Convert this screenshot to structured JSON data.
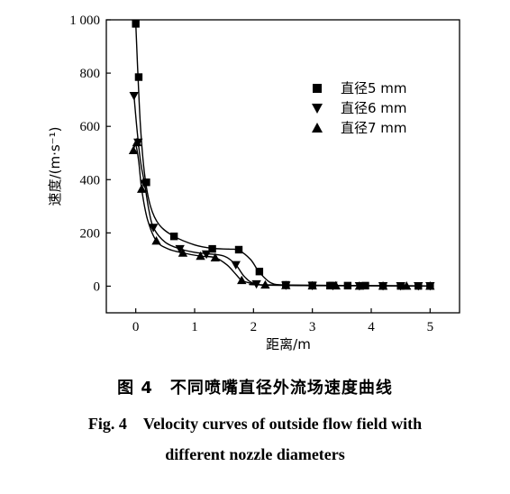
{
  "chart_data": {
    "type": "line",
    "xlabel": "距离/m",
    "ylabel": "速度/(m·s⁻¹)",
    "xlim": [
      -0.5,
      5.5
    ],
    "ylim": [
      -100,
      1000
    ],
    "x_ticks": [
      0,
      1,
      2,
      3,
      4,
      5
    ],
    "y_ticks": [
      0,
      200,
      400,
      600,
      800,
      1000
    ],
    "y_tick_labels": [
      "0",
      "200",
      "400",
      "600",
      "800",
      "1 000"
    ],
    "grid": false,
    "legend_position": "upper-right",
    "series": [
      {
        "name": "直径5 mm",
        "marker": "square",
        "points": [
          [
            0.0,
            985
          ],
          [
            0.05,
            785
          ],
          [
            0.18,
            390
          ],
          [
            0.65,
            187
          ],
          [
            1.3,
            140
          ],
          [
            1.75,
            137
          ],
          [
            2.1,
            55
          ],
          [
            2.55,
            5
          ],
          [
            3.0,
            3
          ],
          [
            3.3,
            2
          ],
          [
            3.6,
            2
          ],
          [
            3.9,
            2
          ],
          [
            4.2,
            1
          ],
          [
            4.5,
            1
          ],
          [
            4.8,
            1
          ],
          [
            5.0,
            1
          ]
        ],
        "curve": [
          [
            0.0,
            985
          ],
          [
            0.03,
            830
          ],
          [
            0.08,
            600
          ],
          [
            0.15,
            420
          ],
          [
            0.25,
            300
          ],
          [
            0.4,
            230
          ],
          [
            0.65,
            187
          ],
          [
            1.0,
            155
          ],
          [
            1.3,
            142
          ],
          [
            1.6,
            139
          ],
          [
            1.75,
            135
          ],
          [
            1.95,
            100
          ],
          [
            2.1,
            52
          ],
          [
            2.3,
            12
          ],
          [
            2.55,
            4
          ],
          [
            3.0,
            2
          ],
          [
            5.0,
            1
          ]
        ]
      },
      {
        "name": "直径6 mm",
        "marker": "triangle-down",
        "points": [
          [
            -0.03,
            715
          ],
          [
            0.04,
            540
          ],
          [
            0.15,
            385
          ],
          [
            0.3,
            220
          ],
          [
            0.75,
            140
          ],
          [
            1.2,
            120
          ],
          [
            1.7,
            80
          ],
          [
            2.05,
            8
          ],
          [
            2.55,
            3
          ],
          [
            3.0,
            2
          ],
          [
            3.35,
            2
          ],
          [
            3.8,
            1
          ],
          [
            4.2,
            1
          ],
          [
            4.5,
            1
          ],
          [
            4.8,
            1
          ],
          [
            5.0,
            1
          ]
        ],
        "curve": [
          [
            -0.03,
            715
          ],
          [
            0.02,
            590
          ],
          [
            0.08,
            470
          ],
          [
            0.15,
            385
          ],
          [
            0.22,
            290
          ],
          [
            0.3,
            220
          ],
          [
            0.5,
            165
          ],
          [
            0.75,
            140
          ],
          [
            1.0,
            127
          ],
          [
            1.2,
            122
          ],
          [
            1.5,
            113
          ],
          [
            1.7,
            80
          ],
          [
            1.85,
            35
          ],
          [
            2.05,
            8
          ],
          [
            2.55,
            3
          ],
          [
            5.0,
            1
          ]
        ]
      },
      {
        "name": "直径7 mm",
        "marker": "triangle-up",
        "points": [
          [
            -0.04,
            510
          ],
          [
            0.02,
            540
          ],
          [
            0.1,
            365
          ],
          [
            0.35,
            170
          ],
          [
            0.8,
            125
          ],
          [
            1.1,
            113
          ],
          [
            1.35,
            107
          ],
          [
            1.8,
            22
          ],
          [
            2.2,
            5
          ],
          [
            2.55,
            3
          ],
          [
            3.0,
            2
          ],
          [
            3.4,
            2
          ],
          [
            3.8,
            1
          ],
          [
            4.2,
            1
          ],
          [
            4.6,
            1
          ],
          [
            5.0,
            1
          ]
        ],
        "curve": [
          [
            -0.04,
            510
          ],
          [
            0.0,
            530
          ],
          [
            0.05,
            470
          ],
          [
            0.1,
            365
          ],
          [
            0.2,
            250
          ],
          [
            0.35,
            170
          ],
          [
            0.55,
            140
          ],
          [
            0.8,
            125
          ],
          [
            1.1,
            113
          ],
          [
            1.35,
            107
          ],
          [
            1.55,
            80
          ],
          [
            1.7,
            45
          ],
          [
            1.8,
            22
          ],
          [
            2.0,
            9
          ],
          [
            2.2,
            5
          ],
          [
            5.0,
            1
          ]
        ]
      }
    ]
  },
  "caption": {
    "zh": "图 4　不同喷嘴直径外流场速度曲线",
    "en_line1": "Fig. 4　Velocity curves of outside flow field with",
    "en_line2": "different nozzle diameters"
  }
}
